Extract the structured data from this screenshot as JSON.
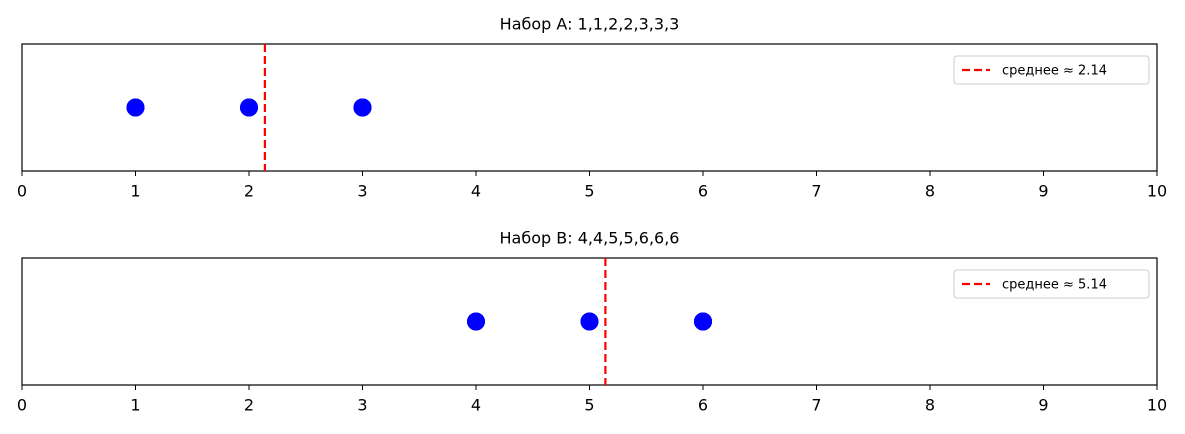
{
  "chart_data": [
    {
      "type": "scatter",
      "title": "Набор A: 1,1,2,2,3,3,3",
      "values": [
        1,
        1,
        2,
        2,
        3,
        3,
        3
      ],
      "color": "#0000ff",
      "mean": {
        "value": 2.14,
        "label": "среднее ≈ 2.14",
        "color": "#ff0000"
      },
      "xlim": [
        0,
        10
      ],
      "xticks": [
        0,
        1,
        2,
        3,
        4,
        5,
        6,
        7,
        8,
        9,
        10
      ],
      "legend": "upper right"
    },
    {
      "type": "scatter",
      "title": "Набор B: 4,4,5,5,6,6,6",
      "values": [
        4,
        4,
        5,
        5,
        6,
        6,
        6
      ],
      "color": "#0000ff",
      "mean": {
        "value": 5.14,
        "label": "среднее ≈ 5.14",
        "color": "#ff0000"
      },
      "xlim": [
        0,
        10
      ],
      "xticks": [
        0,
        1,
        2,
        3,
        4,
        5,
        6,
        7,
        8,
        9,
        10
      ],
      "legend": "upper right"
    }
  ]
}
